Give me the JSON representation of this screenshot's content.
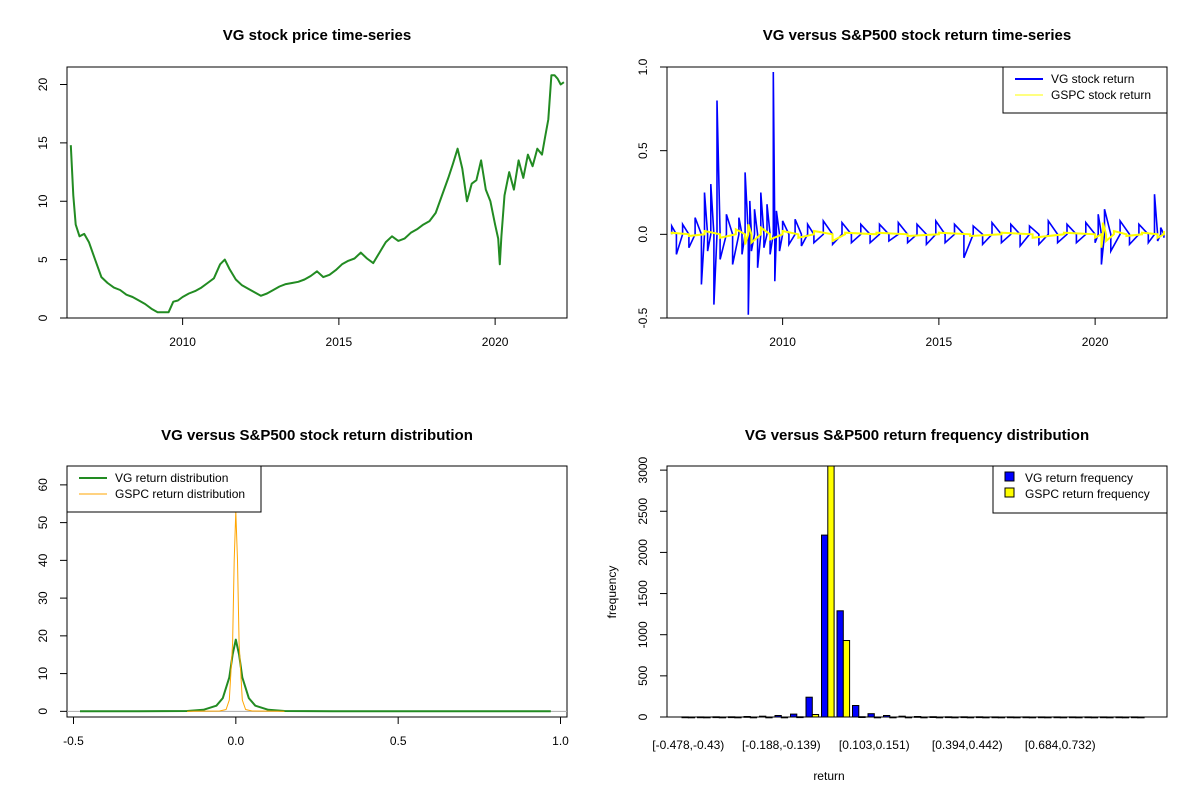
{
  "colors": {
    "vg_price": "#228B22",
    "vg_return": "#0000FF",
    "gspc_return": "#FFFF00",
    "vg_density": "#228B22",
    "gspc_density": "#FFA500",
    "vg_bar": "#0000FF",
    "gspc_bar": "#FFFF00"
  },
  "chart_data": [
    {
      "type": "line",
      "title": "VG stock price time-series",
      "xlabel": "",
      "ylabel": "",
      "xlim": [
        2006.3,
        2022.3
      ],
      "ylim": [
        0,
        21.5
      ],
      "xticks": [
        2010,
        2015,
        2020
      ],
      "xtick_labels": [
        "2010",
        "2015",
        "2020"
      ],
      "yticks": [
        0,
        5,
        10,
        15,
        20
      ],
      "ytick_labels": [
        "0",
        "5",
        "10",
        "15",
        "20"
      ],
      "legend": null,
      "series": [
        {
          "color": "#228B22",
          "x": [
            2006.42,
            2006.5,
            2006.58,
            2006.7,
            2006.85,
            2007.0,
            2007.2,
            2007.4,
            2007.6,
            2007.8,
            2008.0,
            2008.2,
            2008.4,
            2008.6,
            2008.8,
            2009.0,
            2009.2,
            2009.4,
            2009.55,
            2009.7,
            2009.85,
            2010.0,
            2010.2,
            2010.4,
            2010.6,
            2010.8,
            2011.0,
            2011.2,
            2011.35,
            2011.5,
            2011.7,
            2011.9,
            2012.1,
            2012.3,
            2012.5,
            2012.7,
            2012.9,
            2013.1,
            2013.3,
            2013.5,
            2013.7,
            2013.9,
            2014.1,
            2014.3,
            2014.5,
            2014.7,
            2014.9,
            2015.1,
            2015.3,
            2015.5,
            2015.7,
            2015.9,
            2016.1,
            2016.3,
            2016.5,
            2016.7,
            2016.9,
            2017.1,
            2017.3,
            2017.5,
            2017.7,
            2017.9,
            2018.1,
            2018.3,
            2018.5,
            2018.65,
            2018.8,
            2018.95,
            2019.1,
            2019.25,
            2019.4,
            2019.55,
            2019.7,
            2019.85,
            2020.0,
            2020.1,
            2020.15,
            2020.2,
            2020.3,
            2020.45,
            2020.6,
            2020.75,
            2020.9,
            2021.05,
            2021.2,
            2021.35,
            2021.5,
            2021.6,
            2021.7,
            2021.8,
            2021.9,
            2022.0,
            2022.1,
            2022.2
          ],
          "values": [
            14.8,
            10.5,
            8.0,
            7.0,
            7.2,
            6.5,
            5.0,
            3.5,
            3.0,
            2.6,
            2.4,
            2.0,
            1.8,
            1.5,
            1.2,
            0.8,
            0.5,
            0.5,
            0.5,
            1.4,
            1.5,
            1.8,
            2.1,
            2.3,
            2.6,
            3.0,
            3.4,
            4.6,
            5.0,
            4.2,
            3.3,
            2.8,
            2.5,
            2.2,
            1.9,
            2.1,
            2.4,
            2.7,
            2.9,
            3.0,
            3.1,
            3.3,
            3.6,
            4.0,
            3.5,
            3.7,
            4.1,
            4.6,
            4.9,
            5.1,
            5.6,
            5.1,
            4.7,
            5.6,
            6.5,
            7.0,
            6.6,
            6.8,
            7.3,
            7.6,
            8.0,
            8.3,
            9.0,
            10.5,
            12.0,
            13.2,
            14.5,
            12.8,
            10.0,
            11.5,
            11.8,
            13.5,
            11.0,
            10.0,
            8.0,
            6.8,
            4.6,
            7.0,
            10.5,
            12.5,
            11.0,
            13.5,
            12.0,
            14.0,
            13.0,
            14.5,
            14.0,
            15.5,
            17.0,
            20.8,
            20.8,
            20.5,
            20.0,
            20.2
          ]
        }
      ]
    },
    {
      "type": "line",
      "title": "VG versus S&P500 stock return time-series",
      "xlabel": "",
      "ylabel": "",
      "xlim": [
        2006.3,
        2022.3
      ],
      "ylim": [
        -0.5,
        1.0
      ],
      "xticks": [
        2010,
        2015,
        2020
      ],
      "xtick_labels": [
        "2010",
        "2015",
        "2020"
      ],
      "yticks": [
        -0.5,
        0.0,
        0.5,
        1.0
      ],
      "ytick_labels": [
        "-0.5",
        "0.0",
        "0.5",
        "1.0"
      ],
      "legend": "top-right",
      "series": [
        {
          "name": "VG stock return",
          "color": "#0000FF",
          "x": [
            2006.45,
            2006.6,
            2006.8,
            2007.0,
            2007.2,
            2007.4,
            2007.5,
            2007.6,
            2007.7,
            2007.8,
            2007.9,
            2008.0,
            2008.2,
            2008.4,
            2008.6,
            2008.7,
            2008.8,
            2008.9,
            2008.95,
            2009.0,
            2009.1,
            2009.2,
            2009.3,
            2009.4,
            2009.5,
            2009.6,
            2009.7,
            2009.75,
            2009.8,
            2009.9,
            2010.0,
            2010.2,
            2010.4,
            2010.6,
            2010.8,
            2011.0,
            2011.3,
            2011.6,
            2011.9,
            2012.2,
            2012.5,
            2012.8,
            2013.1,
            2013.4,
            2013.7,
            2014.0,
            2014.3,
            2014.6,
            2014.9,
            2015.2,
            2015.5,
            2015.8,
            2016.1,
            2016.4,
            2016.7,
            2017.0,
            2017.3,
            2017.6,
            2017.9,
            2018.2,
            2018.5,
            2018.8,
            2019.1,
            2019.4,
            2019.7,
            2020.0,
            2020.1,
            2020.2,
            2020.3,
            2020.5,
            2020.8,
            2021.1,
            2021.4,
            2021.7,
            2021.9,
            2022.0,
            2022.1,
            2022.2
          ],
          "values": [
            0.05,
            -0.12,
            0.06,
            -0.08,
            0.1,
            -0.3,
            0.25,
            -0.1,
            0.3,
            -0.42,
            0.8,
            -0.15,
            0.12,
            -0.18,
            0.1,
            -0.12,
            0.37,
            -0.48,
            0.2,
            -0.1,
            0.15,
            -0.2,
            0.25,
            -0.08,
            0.18,
            -0.12,
            0.97,
            -0.28,
            0.14,
            -0.1,
            0.08,
            -0.06,
            0.09,
            -0.07,
            0.06,
            -0.05,
            0.08,
            -0.06,
            0.07,
            -0.05,
            0.06,
            -0.05,
            0.06,
            -0.04,
            0.07,
            -0.05,
            0.06,
            -0.06,
            0.08,
            -0.05,
            0.06,
            -0.14,
            0.05,
            -0.06,
            0.07,
            -0.05,
            0.06,
            -0.07,
            0.05,
            -0.06,
            0.08,
            -0.05,
            0.06,
            -0.05,
            0.07,
            -0.05,
            0.12,
            -0.18,
            0.15,
            -0.1,
            0.08,
            -0.06,
            0.06,
            -0.05,
            0.24,
            -0.04,
            0.04,
            -0.02
          ]
        },
        {
          "name": "GSPC stock return",
          "color": "#FFFF00",
          "x": [
            2006.45,
            2007.0,
            2007.5,
            2008.0,
            2008.5,
            2008.8,
            2008.9,
            2009.0,
            2009.3,
            2009.6,
            2010.0,
            2010.5,
            2011.0,
            2011.6,
            2012.0,
            2013.0,
            2014.0,
            2015.0,
            2016.0,
            2017.0,
            2018.0,
            2019.0,
            2020.0,
            2020.2,
            2020.25,
            2020.35,
            2020.6,
            2021.0,
            2021.5,
            2022.0,
            2022.2
          ],
          "values": [
            0.01,
            -0.01,
            0.02,
            -0.02,
            0.03,
            -0.06,
            0.06,
            -0.05,
            0.04,
            -0.03,
            0.02,
            -0.02,
            0.02,
            -0.04,
            0.01,
            0.01,
            -0.01,
            0.01,
            -0.01,
            0.01,
            -0.02,
            0.01,
            -0.02,
            -0.08,
            0.07,
            -0.04,
            0.02,
            -0.01,
            0.01,
            -0.02,
            0.02
          ]
        }
      ]
    },
    {
      "type": "line",
      "title": "VG versus S&P500 stock return distribution",
      "xlabel": "",
      "ylabel": "",
      "xlim": [
        -0.52,
        1.02
      ],
      "ylim": [
        -1.5,
        65
      ],
      "xticks": [
        -0.5,
        0.0,
        0.5,
        1.0
      ],
      "xtick_labels": [
        "-0.5",
        "0.0",
        "0.5",
        "1.0"
      ],
      "yticks": [
        0,
        10,
        20,
        30,
        40,
        50,
        60
      ],
      "ytick_labels": [
        "0",
        "10",
        "20",
        "30",
        "40",
        "50",
        "60"
      ],
      "legend": "top-left",
      "series": [
        {
          "name": "VG return distribution",
          "color": "#228B22",
          "x": [
            -0.48,
            -0.3,
            -0.15,
            -0.1,
            -0.06,
            -0.04,
            -0.02,
            -0.01,
            0.0,
            0.01,
            0.02,
            0.04,
            0.06,
            0.1,
            0.15,
            0.3,
            0.5,
            0.97
          ],
          "values": [
            0.0,
            0.0,
            0.1,
            0.4,
            1.5,
            3.5,
            9.0,
            15.0,
            19.0,
            15.0,
            9.0,
            3.5,
            1.5,
            0.4,
            0.1,
            0.0,
            0.0,
            0.0
          ]
        },
        {
          "name": "GSPC return distribution",
          "color": "#FFA500",
          "x": [
            -0.15,
            -0.05,
            -0.03,
            -0.02,
            -0.01,
            -0.005,
            0.0,
            0.005,
            0.01,
            0.02,
            0.03,
            0.05,
            0.15
          ],
          "values": [
            0.0,
            0.1,
            0.5,
            3.0,
            18.0,
            40.0,
            53.0,
            40.0,
            18.0,
            3.0,
            0.5,
            0.1,
            0.0
          ]
        }
      ]
    },
    {
      "type": "bar",
      "title": "VG versus S&P500 return frequency distribution",
      "xlabel": "return",
      "ylabel": "frequency",
      "ylim": [
        0,
        3050
      ],
      "yticks": [
        0,
        500,
        1000,
        1500,
        2000,
        2500,
        3000
      ],
      "ytick_labels": [
        "0",
        "500",
        "1000",
        "1500",
        "2000",
        "2500",
        "3000"
      ],
      "legend": "top-right",
      "categories": [
        "[-0.478,-0.43)",
        "[-0.43,-0.381)",
        "[-0.381,-0.333)",
        "[-0.333,-0.285)",
        "[-0.285,-0.236)",
        "[-0.236,-0.188)",
        "[-0.188,-0.139)",
        "[-0.139,-0.0908)",
        "[-0.0908,-0.0424)",
        "[-0.0424,0.00594)",
        "[0.00594,0.0543)",
        "[0.0543,0.103)",
        "[0.103,0.151)",
        "[0.151,0.2)",
        "[0.2,0.248)",
        "[0.248,0.297)",
        "[0.297,0.345)",
        "[0.345,0.394)",
        "[0.394,0.442)",
        "[0.442,0.49)",
        "[0.49,0.539)",
        "[0.539,0.587)",
        "[0.587,0.636)",
        "[0.636,0.684)",
        "[0.684,0.732)",
        "[0.732,0.781)",
        "[0.781,0.829)",
        "[0.829,0.878)",
        "[0.878,0.926)",
        "[0.926,0.974)"
      ],
      "shown_category_labels": [
        "[-0.478,-0.43)",
        "[-0.188,-0.139)",
        "[0.103,0.151)",
        "[0.394,0.442)",
        "[0.684,0.732)"
      ],
      "series": [
        {
          "name": "VG return frequency",
          "color": "#0000FF",
          "values": [
            1,
            1,
            2,
            3,
            6,
            10,
            18,
            35,
            240,
            2210,
            1290,
            140,
            40,
            18,
            10,
            6,
            4,
            3,
            2,
            2,
            1,
            1,
            1,
            1,
            1,
            1,
            1,
            1,
            1,
            1
          ]
        },
        {
          "name": "GSPC return frequency",
          "color": "#FFFF00",
          "values": [
            0,
            0,
            0,
            0,
            0,
            0,
            0,
            3,
            30,
            3050,
            930,
            4,
            0,
            0,
            0,
            0,
            0,
            0,
            0,
            0,
            0,
            0,
            0,
            0,
            0,
            0,
            0,
            0,
            0,
            0
          ]
        }
      ]
    }
  ]
}
